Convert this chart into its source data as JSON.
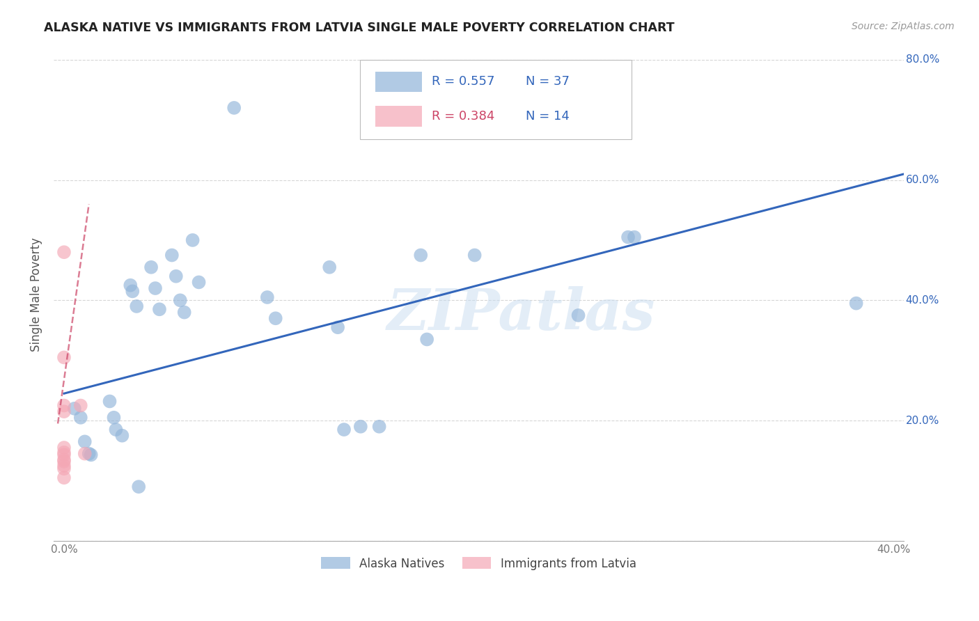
{
  "title": "ALASKA NATIVE VS IMMIGRANTS FROM LATVIA SINGLE MALE POVERTY CORRELATION CHART",
  "source": "Source: ZipAtlas.com",
  "ylabel": "Single Male Poverty",
  "watermark": "ZIPatlas",
  "xlim": [
    -0.005,
    0.405
  ],
  "ylim": [
    0.0,
    0.82
  ],
  "xticks": [
    0.0,
    0.05,
    0.1,
    0.15,
    0.2,
    0.25,
    0.3,
    0.35,
    0.4
  ],
  "yticks": [
    0.0,
    0.2,
    0.4,
    0.6,
    0.8
  ],
  "legend_blue_r": "R = 0.557",
  "legend_blue_n": "N = 37",
  "legend_pink_r": "R = 0.384",
  "legend_pink_n": "N = 14",
  "label_blue": "Alaska Natives",
  "label_pink": "Immigrants from Latvia",
  "blue_color": "#91B4D9",
  "pink_color": "#F4A7B5",
  "blue_line_color": "#3366BB",
  "pink_line_color": "#CC4466",
  "text_blue": "#3366BB",
  "text_pink": "#CC4466",
  "text_dark": "#333333",
  "blue_scatter": [
    [
      0.005,
      0.22
    ],
    [
      0.008,
      0.205
    ],
    [
      0.01,
      0.165
    ],
    [
      0.012,
      0.145
    ],
    [
      0.013,
      0.143
    ],
    [
      0.022,
      0.232
    ],
    [
      0.024,
      0.205
    ],
    [
      0.025,
      0.185
    ],
    [
      0.028,
      0.175
    ],
    [
      0.032,
      0.425
    ],
    [
      0.033,
      0.415
    ],
    [
      0.035,
      0.39
    ],
    [
      0.036,
      0.09
    ],
    [
      0.042,
      0.455
    ],
    [
      0.044,
      0.42
    ],
    [
      0.046,
      0.385
    ],
    [
      0.052,
      0.475
    ],
    [
      0.054,
      0.44
    ],
    [
      0.056,
      0.4
    ],
    [
      0.058,
      0.38
    ],
    [
      0.062,
      0.5
    ],
    [
      0.065,
      0.43
    ],
    [
      0.082,
      0.72
    ],
    [
      0.098,
      0.405
    ],
    [
      0.102,
      0.37
    ],
    [
      0.128,
      0.455
    ],
    [
      0.132,
      0.355
    ],
    [
      0.135,
      0.185
    ],
    [
      0.143,
      0.19
    ],
    [
      0.152,
      0.19
    ],
    [
      0.172,
      0.475
    ],
    [
      0.175,
      0.335
    ],
    [
      0.198,
      0.475
    ],
    [
      0.248,
      0.375
    ],
    [
      0.272,
      0.505
    ],
    [
      0.275,
      0.505
    ],
    [
      0.382,
      0.395
    ]
  ],
  "pink_scatter": [
    [
      0.0,
      0.48
    ],
    [
      0.0,
      0.305
    ],
    [
      0.0,
      0.225
    ],
    [
      0.0,
      0.215
    ],
    [
      0.0,
      0.155
    ],
    [
      0.0,
      0.147
    ],
    [
      0.0,
      0.143
    ],
    [
      0.0,
      0.135
    ],
    [
      0.0,
      0.132
    ],
    [
      0.0,
      0.125
    ],
    [
      0.0,
      0.12
    ],
    [
      0.0,
      0.105
    ],
    [
      0.008,
      0.225
    ],
    [
      0.01,
      0.145
    ]
  ],
  "blue_line_x": [
    0.0,
    0.405
  ],
  "blue_line_y": [
    0.245,
    0.61
  ],
  "pink_line_x": [
    -0.003,
    0.012
  ],
  "pink_line_y": [
    0.195,
    0.56
  ],
  "background_color": "#FFFFFF",
  "grid_color": "#CCCCCC",
  "ytick_right_labels": [
    "20.0%",
    "40.0%",
    "60.0%",
    "80.0%"
  ],
  "ytick_right_vals": [
    0.2,
    0.4,
    0.6,
    0.8
  ]
}
